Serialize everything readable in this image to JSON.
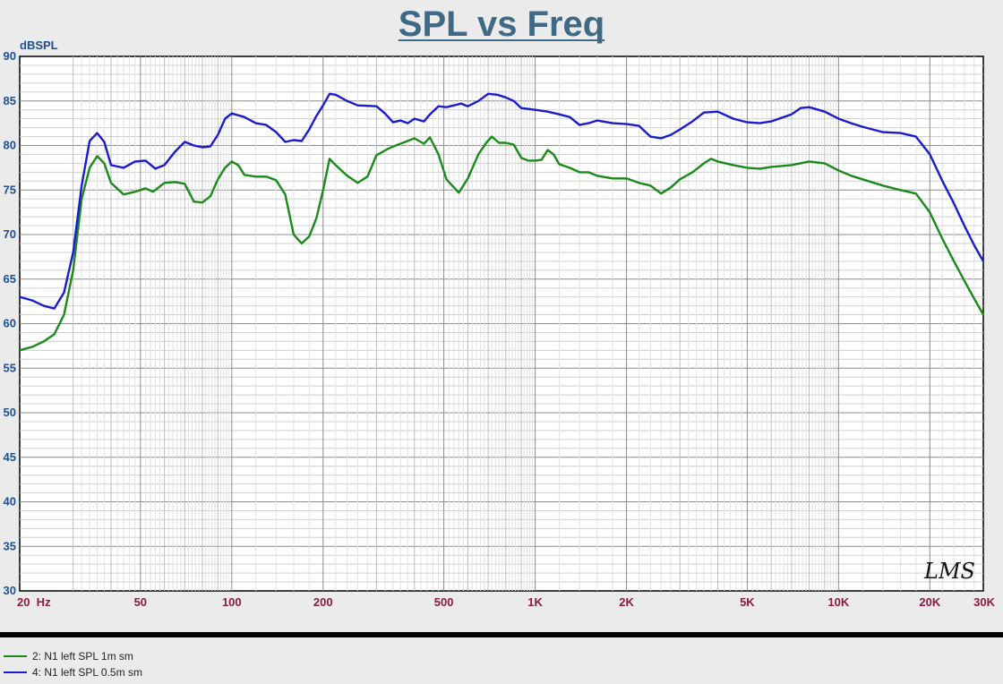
{
  "chart_data": {
    "type": "line",
    "title": "SPL vs Freq",
    "ylabel": "dBSPL",
    "xlabel": "",
    "x_scale": "log",
    "xlim": [
      20,
      30000
    ],
    "ylim": [
      30,
      90
    ],
    "grid": true,
    "watermark": "LMS",
    "y_ticks": [
      "90",
      "85",
      "80",
      "75",
      "70",
      "65",
      "60",
      "55",
      "50",
      "45",
      "40",
      "35",
      "30"
    ],
    "x_ticks": [
      {
        "value": 20,
        "label": "20  Hz"
      },
      {
        "value": 50,
        "label": "50"
      },
      {
        "value": 100,
        "label": "100"
      },
      {
        "value": 200,
        "label": "200"
      },
      {
        "value": 500,
        "label": "500"
      },
      {
        "value": 1000,
        "label": "1K"
      },
      {
        "value": 2000,
        "label": "2K"
      },
      {
        "value": 5000,
        "label": "5K"
      },
      {
        "value": 10000,
        "label": "10K"
      },
      {
        "value": 20000,
        "label": "20K"
      },
      {
        "value": 30000,
        "label": "30K"
      }
    ],
    "series": [
      {
        "name": "2: N1 left SPL 1m sm",
        "color": "#1a8a1a",
        "points": [
          [
            20,
            57
          ],
          [
            22,
            57.4
          ],
          [
            24,
            58
          ],
          [
            26,
            58.8
          ],
          [
            28,
            61
          ],
          [
            30,
            66
          ],
          [
            32,
            74
          ],
          [
            34,
            77.5
          ],
          [
            36,
            78.8
          ],
          [
            38,
            78
          ],
          [
            40,
            75.8
          ],
          [
            44,
            74.5
          ],
          [
            48,
            74.8
          ],
          [
            52,
            75.2
          ],
          [
            55,
            74.8
          ],
          [
            60,
            75.8
          ],
          [
            65,
            75.9
          ],
          [
            70,
            75.7
          ],
          [
            75,
            73.7
          ],
          [
            80,
            73.6
          ],
          [
            85,
            74.3
          ],
          [
            90,
            76.2
          ],
          [
            95,
            77.5
          ],
          [
            100,
            78.2
          ],
          [
            105,
            77.8
          ],
          [
            110,
            76.7
          ],
          [
            120,
            76.5
          ],
          [
            130,
            76.5
          ],
          [
            140,
            76.1
          ],
          [
            150,
            74.5
          ],
          [
            160,
            70
          ],
          [
            170,
            69
          ],
          [
            180,
            69.8
          ],
          [
            190,
            71.8
          ],
          [
            200,
            75
          ],
          [
            210,
            78.5
          ],
          [
            220,
            77.8
          ],
          [
            240,
            76.6
          ],
          [
            260,
            75.8
          ],
          [
            280,
            76.5
          ],
          [
            300,
            78.9
          ],
          [
            330,
            79.7
          ],
          [
            360,
            80.2
          ],
          [
            400,
            80.8
          ],
          [
            430,
            80.2
          ],
          [
            450,
            80.9
          ],
          [
            480,
            79
          ],
          [
            510,
            76.2
          ],
          [
            560,
            74.7
          ],
          [
            600,
            76.3
          ],
          [
            650,
            79
          ],
          [
            690,
            80.3
          ],
          [
            720,
            81
          ],
          [
            760,
            80.3
          ],
          [
            800,
            80.3
          ],
          [
            850,
            80.1
          ],
          [
            900,
            78.6
          ],
          [
            950,
            78.3
          ],
          [
            1000,
            78.3
          ],
          [
            1050,
            78.4
          ],
          [
            1100,
            79.5
          ],
          [
            1150,
            79
          ],
          [
            1200,
            77.9
          ],
          [
            1300,
            77.5
          ],
          [
            1400,
            77
          ],
          [
            1500,
            77
          ],
          [
            1600,
            76.6
          ],
          [
            1800,
            76.3
          ],
          [
            2000,
            76.3
          ],
          [
            2200,
            75.8
          ],
          [
            2400,
            75.5
          ],
          [
            2600,
            74.6
          ],
          [
            2800,
            75.3
          ],
          [
            3000,
            76.2
          ],
          [
            3300,
            77
          ],
          [
            3600,
            78
          ],
          [
            3800,
            78.5
          ],
          [
            4000,
            78.2
          ],
          [
            4500,
            77.8
          ],
          [
            5000,
            77.5
          ],
          [
            5500,
            77.4
          ],
          [
            6000,
            77.6
          ],
          [
            7000,
            77.8
          ],
          [
            8000,
            78.2
          ],
          [
            9000,
            78
          ],
          [
            10000,
            77.2
          ],
          [
            11000,
            76.6
          ],
          [
            12000,
            76.2
          ],
          [
            14000,
            75.5
          ],
          [
            16000,
            75
          ],
          [
            18000,
            74.6
          ],
          [
            20000,
            72.5
          ],
          [
            22000,
            69.5
          ],
          [
            24000,
            67
          ],
          [
            26000,
            64.8
          ],
          [
            28000,
            62.8
          ],
          [
            30000,
            61
          ]
        ]
      },
      {
        "name": "4: N1 left SPL 0.5m sm",
        "color": "#1a1ad0",
        "points": [
          [
            20,
            63
          ],
          [
            22,
            62.6
          ],
          [
            24,
            62
          ],
          [
            26,
            61.7
          ],
          [
            28,
            63.5
          ],
          [
            30,
            68
          ],
          [
            32,
            75.5
          ],
          [
            34,
            80.5
          ],
          [
            36,
            81.4
          ],
          [
            38,
            80.4
          ],
          [
            40,
            77.8
          ],
          [
            44,
            77.5
          ],
          [
            48,
            78.2
          ],
          [
            52,
            78.3
          ],
          [
            56,
            77.4
          ],
          [
            60,
            77.8
          ],
          [
            65,
            79.3
          ],
          [
            70,
            80.4
          ],
          [
            75,
            80
          ],
          [
            80,
            79.8
          ],
          [
            85,
            79.9
          ],
          [
            90,
            81.2
          ],
          [
            95,
            83
          ],
          [
            100,
            83.6
          ],
          [
            110,
            83.2
          ],
          [
            120,
            82.5
          ],
          [
            130,
            82.3
          ],
          [
            140,
            81.5
          ],
          [
            150,
            80.4
          ],
          [
            160,
            80.6
          ],
          [
            170,
            80.5
          ],
          [
            180,
            81.8
          ],
          [
            190,
            83.3
          ],
          [
            200,
            84.5
          ],
          [
            210,
            85.8
          ],
          [
            220,
            85.7
          ],
          [
            240,
            85
          ],
          [
            260,
            84.5
          ],
          [
            300,
            84.4
          ],
          [
            320,
            83.6
          ],
          [
            340,
            82.6
          ],
          [
            360,
            82.8
          ],
          [
            380,
            82.5
          ],
          [
            400,
            83
          ],
          [
            430,
            82.7
          ],
          [
            450,
            83.5
          ],
          [
            480,
            84.4
          ],
          [
            510,
            84.3
          ],
          [
            540,
            84.5
          ],
          [
            570,
            84.7
          ],
          [
            600,
            84.4
          ],
          [
            650,
            85
          ],
          [
            700,
            85.8
          ],
          [
            750,
            85.7
          ],
          [
            800,
            85.4
          ],
          [
            850,
            85
          ],
          [
            900,
            84.2
          ],
          [
            1000,
            84
          ],
          [
            1100,
            83.8
          ],
          [
            1200,
            83.5
          ],
          [
            1300,
            83.2
          ],
          [
            1400,
            82.3
          ],
          [
            1500,
            82.5
          ],
          [
            1600,
            82.8
          ],
          [
            1800,
            82.5
          ],
          [
            2000,
            82.4
          ],
          [
            2200,
            82.2
          ],
          [
            2400,
            81
          ],
          [
            2600,
            80.8
          ],
          [
            2800,
            81.2
          ],
          [
            3000,
            81.8
          ],
          [
            3300,
            82.7
          ],
          [
            3600,
            83.7
          ],
          [
            4000,
            83.8
          ],
          [
            4500,
            83
          ],
          [
            5000,
            82.6
          ],
          [
            5500,
            82.5
          ],
          [
            6000,
            82.7
          ],
          [
            7000,
            83.5
          ],
          [
            7500,
            84.2
          ],
          [
            8000,
            84.3
          ],
          [
            9000,
            83.8
          ],
          [
            10000,
            83
          ],
          [
            11000,
            82.5
          ],
          [
            12000,
            82.1
          ],
          [
            14000,
            81.5
          ],
          [
            16000,
            81.4
          ],
          [
            18000,
            81
          ],
          [
            20000,
            79
          ],
          [
            22000,
            76
          ],
          [
            24000,
            73.5
          ],
          [
            26000,
            71
          ],
          [
            28000,
            68.8
          ],
          [
            30000,
            67
          ]
        ]
      }
    ]
  }
}
